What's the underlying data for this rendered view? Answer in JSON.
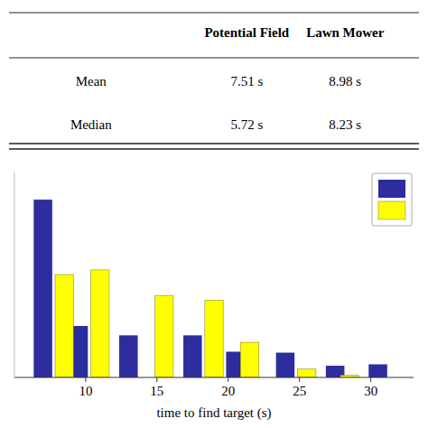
{
  "chart_data": [
    {
      "type": "table",
      "columns": [
        "Potential Field",
        "Lawn Mower"
      ],
      "rows": [
        "Mean",
        "Median"
      ],
      "values": [
        [
          "7.51 s",
          "8.98 s"
        ],
        [
          "5.72 s",
          "8.23 s"
        ]
      ]
    },
    {
      "type": "bar",
      "xlabel": "time to find target (s)",
      "series": [
        {
          "color": "#2d2d9f",
          "x": [
            7.0,
            9.5,
            13.0,
            17.5,
            20.5,
            24.0,
            27.5,
            30.5
          ],
          "values": [
            0.38,
            0.11,
            0.09,
            0.09,
            0.055,
            0.053,
            0.025,
            0.028
          ]
        },
        {
          "color": "#ffff00",
          "x": [
            8.5,
            11.0,
            15.5,
            19.0,
            21.5,
            25.5,
            28.5
          ],
          "values": [
            0.22,
            0.23,
            0.175,
            0.165,
            0.075,
            0.018,
            0.005
          ]
        }
      ],
      "xlim": [
        5.0,
        33.0
      ],
      "xticks": [
        10,
        15,
        20,
        25,
        30
      ],
      "ylim": [
        0,
        0.44
      ],
      "yticks": [],
      "tick_labels": "x",
      "legend": "upper right"
    }
  ]
}
